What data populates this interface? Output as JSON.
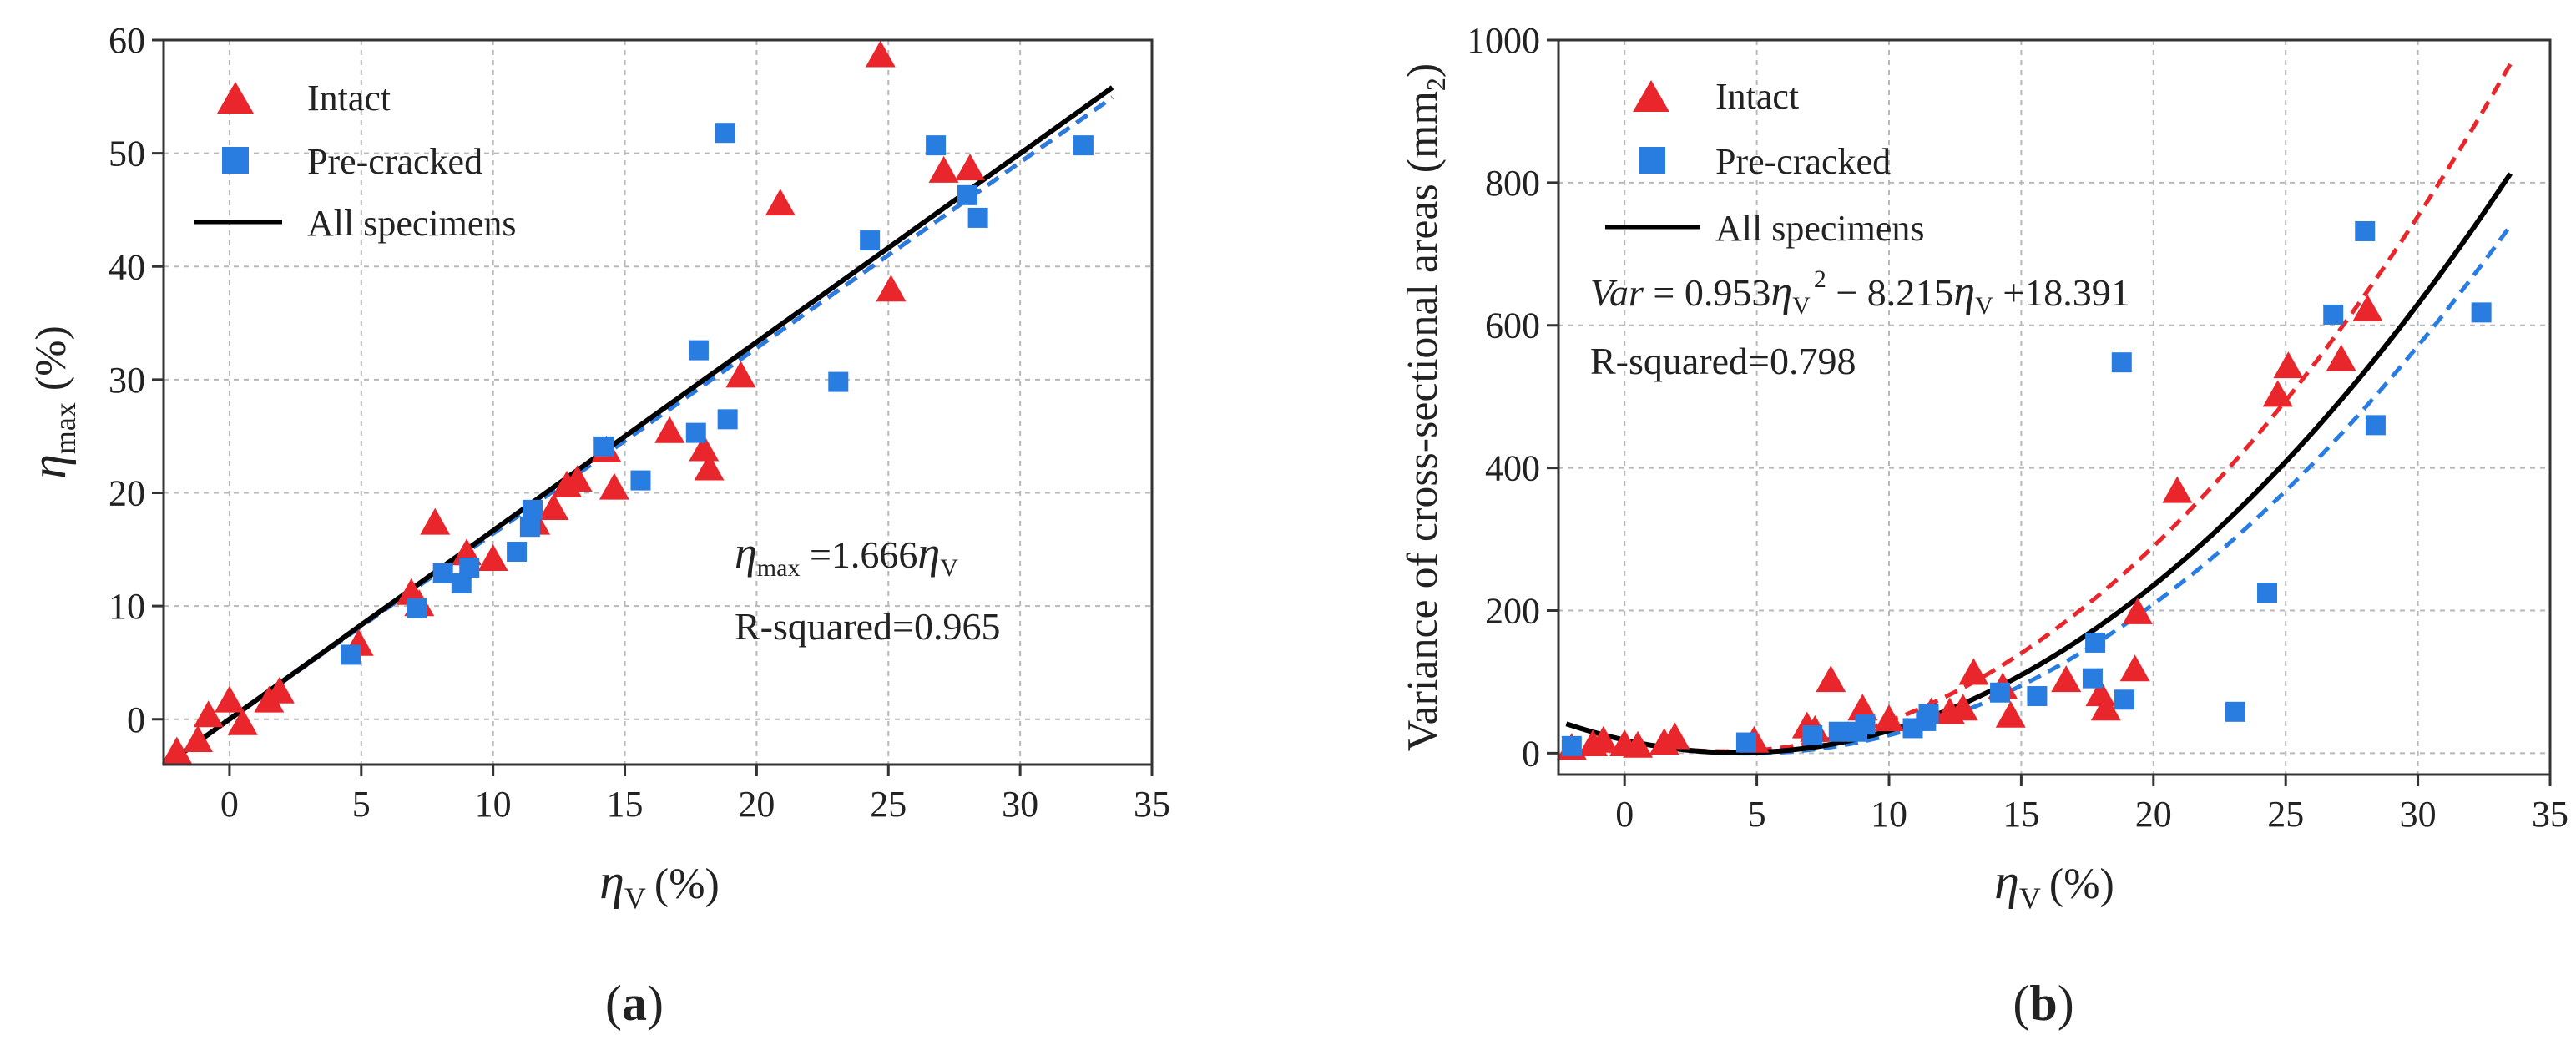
{
  "chart_data": [
    {
      "id": "a",
      "type": "scatter",
      "caption": "(a)",
      "caption_letter": "a",
      "xlabel": "ηV (%)",
      "xlabel_symbol": "η",
      "xlabel_sub": "V",
      "xlabel_unit": "(%)",
      "ylabel": "ηmax (%)",
      "ylabel_symbol": "η",
      "ylabel_sub": "max",
      "ylabel_unit": "(%)",
      "xlim": [
        -2.5,
        35
      ],
      "ylim": [
        -4,
        60
      ],
      "xticks": [
        0,
        5,
        10,
        15,
        20,
        25,
        30,
        35
      ],
      "yticks": [
        0,
        10,
        20,
        30,
        40,
        50,
        60
      ],
      "grid": true,
      "legend_position": "top-left",
      "legend": [
        {
          "label": "Intact",
          "marker": "triangle",
          "color": "#e8262b"
        },
        {
          "label": "Pre-cracked",
          "marker": "square",
          "color": "#2a7de0"
        },
        {
          "label": "All specimens",
          "marker": "line",
          "color": "#000000"
        }
      ],
      "equation": {
        "lhs_symbol": "η",
        "lhs_sub": "max",
        "eq": " =1.666",
        "rhs_symbol": "η",
        "rhs_sub": "V"
      },
      "r_squared": "R-squared=0.965",
      "series": [
        {
          "name": "Intact",
          "marker": "triangle",
          "color": "#e8262b",
          "points": [
            [
              -2,
              -3
            ],
            [
              -1.2,
              -2
            ],
            [
              -0.8,
              0.2
            ],
            [
              0,
              1.5
            ],
            [
              0.5,
              -0.5
            ],
            [
              1.5,
              1.5
            ],
            [
              1.9,
              2.3
            ],
            [
              4.9,
              6.5
            ],
            [
              6.9,
              11
            ],
            [
              7.2,
              10
            ],
            [
              7.8,
              17.2
            ],
            [
              9,
              14.5
            ],
            [
              10,
              14
            ],
            [
              11.6,
              17.2
            ],
            [
              12.3,
              18.5
            ],
            [
              12.8,
              20.5
            ],
            [
              13.2,
              21
            ],
            [
              14.3,
              23.6
            ],
            [
              14.6,
              20.3
            ],
            [
              16.7,
              25.3
            ],
            [
              18,
              23.7
            ],
            [
              18.2,
              22
            ],
            [
              19.4,
              30.2
            ],
            [
              20.9,
              45.4
            ],
            [
              24.7,
              58.5
            ],
            [
              25.1,
              37.8
            ],
            [
              27.1,
              48.3
            ],
            [
              28.1,
              48.5
            ]
          ]
        },
        {
          "name": "Pre-cracked",
          "marker": "square",
          "color": "#2a7de0",
          "points": [
            [
              4.6,
              5.7
            ],
            [
              7.1,
              9.8
            ],
            [
              8.1,
              12.9
            ],
            [
              8.8,
              12
            ],
            [
              9.1,
              13.4
            ],
            [
              10.9,
              14.8
            ],
            [
              11.4,
              17
            ],
            [
              11.5,
              18.5
            ],
            [
              14.2,
              24.1
            ],
            [
              15.6,
              21.1
            ],
            [
              17.7,
              25.3
            ],
            [
              17.8,
              32.6
            ],
            [
              18.8,
              51.8
            ],
            [
              18.9,
              26.5
            ],
            [
              23.1,
              29.8
            ],
            [
              24.3,
              42.3
            ],
            [
              26.8,
              50.7
            ],
            [
              28,
              46.3
            ],
            [
              28.4,
              44.3
            ],
            [
              32.4,
              50.7
            ]
          ]
        }
      ],
      "fits": [
        {
          "name": "All specimens",
          "color": "#000000",
          "style": "solid",
          "slope": 1.666,
          "x_range": [
            -2.2,
            33.5
          ]
        },
        {
          "name": "Intact fit",
          "color": "#e8262b",
          "style": "dashed",
          "slope": 1.64,
          "x_range": [
            -2.2,
            33.5
          ]
        },
        {
          "name": "Pre-cracked fit",
          "color": "#2a7de0",
          "style": "dashed",
          "slope": 1.64,
          "x_range": [
            -2.2,
            33.5
          ]
        }
      ]
    },
    {
      "id": "b",
      "type": "scatter",
      "caption": "(b)",
      "caption_letter": "b",
      "xlabel": "ηV (%)",
      "xlabel_symbol": "η",
      "xlabel_sub": "V",
      "xlabel_unit": "(%)",
      "ylabel": "Variance of cross-sectional areas (mm2)",
      "ylabel_main": "Variance of cross-sectional areas (mm",
      "ylabel_sub": "2",
      "ylabel_close": ")",
      "xlim": [
        -2.5,
        35
      ],
      "ylim": [
        -30,
        1000
      ],
      "xticks": [
        0,
        5,
        10,
        15,
        20,
        25,
        30,
        35
      ],
      "yticks": [
        0,
        200,
        400,
        600,
        800,
        1000
      ],
      "grid": true,
      "legend_position": "top-left",
      "legend": [
        {
          "label": "Intact",
          "marker": "triangle",
          "color": "#e8262b"
        },
        {
          "label": "Pre-cracked",
          "marker": "square",
          "color": "#2a7de0"
        },
        {
          "label": "All specimens",
          "marker": "line",
          "color": "#000000"
        }
      ],
      "equation": {
        "var": "Var",
        "part1": " = 0.953",
        "sym1": "η",
        "sub1": "V",
        "sup1": "2",
        "part2": " − 8.215",
        "sym2": "η",
        "sub2": "V",
        "part3": " +18.391"
      },
      "r_squared": "R-squared=0.798",
      "series": [
        {
          "name": "Intact",
          "marker": "triangle",
          "color": "#e8262b",
          "points": [
            [
              -2,
              5
            ],
            [
              -1.2,
              10
            ],
            [
              -0.8,
              15
            ],
            [
              0,
              10
            ],
            [
              0.5,
              8
            ],
            [
              1.5,
              12
            ],
            [
              1.9,
              20
            ],
            [
              4.9,
              15
            ],
            [
              6.9,
              35
            ],
            [
              7.2,
              30
            ],
            [
              7.8,
              100
            ],
            [
              9,
              60
            ],
            [
              10,
              45
            ],
            [
              11.6,
              55
            ],
            [
              12.3,
              55
            ],
            [
              12.8,
              60
            ],
            [
              13.2,
              110
            ],
            [
              14.3,
              90
            ],
            [
              14.6,
              50
            ],
            [
              16.7,
              100
            ],
            [
              18,
              80
            ],
            [
              18.2,
              60
            ],
            [
              19.3,
              115
            ],
            [
              19.4,
              195
            ],
            [
              20.9,
              365
            ],
            [
              24.7,
              500
            ],
            [
              25.1,
              540
            ],
            [
              27.1,
              550
            ],
            [
              28.1,
              620
            ]
          ]
        },
        {
          "name": "Pre-cracked",
          "marker": "square",
          "color": "#2a7de0",
          "points": [
            [
              -2,
              10
            ],
            [
              4.6,
              15
            ],
            [
              7.1,
              25
            ],
            [
              8.1,
              30
            ],
            [
              8.8,
              30
            ],
            [
              9.1,
              40
            ],
            [
              10.9,
              35
            ],
            [
              11.4,
              45
            ],
            [
              11.5,
              55
            ],
            [
              14.2,
              85
            ],
            [
              15.6,
              80
            ],
            [
              17.7,
              105
            ],
            [
              17.8,
              155
            ],
            [
              18.8,
              548
            ],
            [
              18.9,
              75
            ],
            [
              23.1,
              58
            ],
            [
              24.3,
              225
            ],
            [
              26.8,
              615
            ],
            [
              28,
              732
            ],
            [
              28.4,
              460
            ],
            [
              32.4,
              618
            ]
          ]
        }
      ],
      "fits": [
        {
          "name": "All specimens",
          "color": "#000000",
          "style": "solid",
          "a": 0.953,
          "b": -8.215,
          "c": 18.391,
          "x_range": [
            -2.2,
            33.5
          ]
        },
        {
          "name": "Intact fit",
          "color": "#e8262b",
          "style": "dashed",
          "a": 1.09,
          "b": -8.2,
          "c": 18,
          "x_range": [
            -2.2,
            33.5
          ]
        },
        {
          "name": "Pre-cracked fit",
          "color": "#2a7de0",
          "style": "dashed",
          "a": 0.89,
          "b": -8.3,
          "c": 19,
          "x_range": [
            -2.2,
            33.5
          ]
        }
      ]
    }
  ]
}
